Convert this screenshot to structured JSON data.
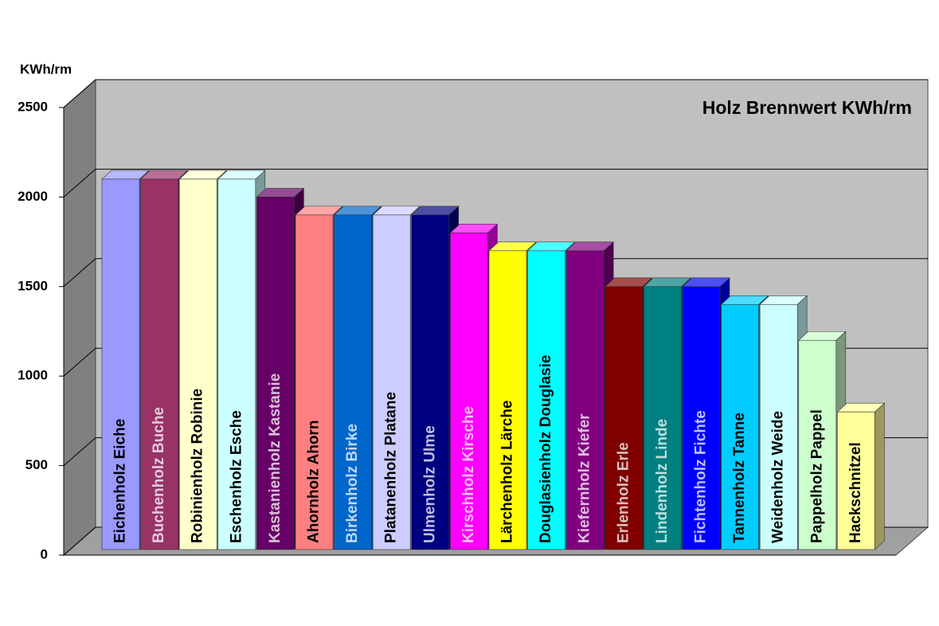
{
  "chart_data": {
    "type": "bar3d",
    "title": "Holz Brennwert KWh/rm",
    "y_label": "KWh/rm",
    "categories": [
      "Eichenholz Eiche",
      "Buchenholz Buche",
      "Robinienholz Robinie",
      "Eschenholz Esche",
      "Kastanienholz Kastanie",
      "Ahornholz Ahorn",
      "Birkenholz Birke",
      "Platanenholz Platane",
      "Ulmenholz Ulme",
      "Kirschholz Kirsche",
      "Lärchenholz Lärche",
      "Douglasienholz Douglasie",
      "Kiefernholz Kiefer",
      "Erlenholz Erle",
      "Lindenholz Linde",
      "Fichtenholz Fichte",
      "Tannenholz Tanne",
      "Weidenholz Weide",
      "Pappelholz Pappel",
      "Hackschnitzel"
    ],
    "values": [
      2100,
      2100,
      2100,
      2100,
      2000,
      1900,
      1900,
      1900,
      1900,
      1800,
      1700,
      1700,
      1700,
      1500,
      1500,
      1500,
      1400,
      1400,
      1200,
      800
    ],
    "colors": [
      "#9999ff",
      "#993366",
      "#ffffcc",
      "#ccffff",
      "#660066",
      "#ff8080",
      "#0066cc",
      "#ccccff",
      "#000080",
      "#ff00ff",
      "#ffff00",
      "#00ffff",
      "#800080",
      "#800000",
      "#008080",
      "#0000ff",
      "#00ccff",
      "#ccffff",
      "#ccffcc",
      "#ffff99"
    ],
    "ylim": [
      0,
      2500
    ],
    "yticks": [
      0,
      500,
      1000,
      1500,
      2000,
      2500
    ],
    "grid": true
  }
}
